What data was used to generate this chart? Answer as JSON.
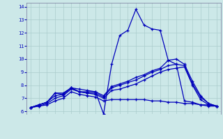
{
  "background_color": "#cce8e8",
  "grid_color": "#aacccc",
  "line_color": "#0000bb",
  "xmin": 0,
  "xmax": 23,
  "ymin": 6,
  "ymax": 14,
  "yticks": [
    6,
    7,
    8,
    9,
    10,
    11,
    12,
    13,
    14
  ],
  "xticks": [
    0,
    1,
    2,
    3,
    4,
    5,
    6,
    7,
    8,
    9,
    10,
    11,
    12,
    13,
    14,
    15,
    16,
    17,
    18,
    19,
    20,
    21,
    22,
    23
  ],
  "curves": [
    {
      "x": [
        0,
        1,
        2,
        3,
        4,
        5,
        6,
        7,
        8,
        9,
        10,
        11,
        12,
        13,
        14,
        15,
        16,
        17,
        18,
        19,
        20,
        21,
        22,
        23
      ],
      "y": [
        6.3,
        6.5,
        6.7,
        7.4,
        7.3,
        7.8,
        7.7,
        7.6,
        7.5,
        5.8,
        9.6,
        11.8,
        12.2,
        13.8,
        12.6,
        12.3,
        12.2,
        9.9,
        9.6,
        6.8,
        6.7,
        6.5,
        6.5,
        6.4
      ]
    },
    {
      "x": [
        0,
        1,
        2,
        3,
        4,
        5,
        6,
        7,
        8,
        9,
        10,
        11,
        12,
        13,
        14,
        15,
        16,
        17,
        18,
        19,
        20,
        21,
        22,
        23
      ],
      "y": [
        6.3,
        6.5,
        6.7,
        7.4,
        7.4,
        7.8,
        7.5,
        7.5,
        7.5,
        7.2,
        7.9,
        8.1,
        8.3,
        8.6,
        8.8,
        9.1,
        9.3,
        9.9,
        10.0,
        9.6,
        8.3,
        7.2,
        6.6,
        6.4
      ]
    },
    {
      "x": [
        0,
        1,
        2,
        3,
        4,
        5,
        6,
        7,
        8,
        9,
        10,
        11,
        12,
        13,
        14,
        15,
        16,
        17,
        18,
        19,
        20,
        21,
        22,
        23
      ],
      "y": [
        6.3,
        6.5,
        6.7,
        7.2,
        7.3,
        7.8,
        7.5,
        7.4,
        7.4,
        7.1,
        7.8,
        8.0,
        8.2,
        8.4,
        8.7,
        9.0,
        9.2,
        9.5,
        9.6,
        9.5,
        8.1,
        7.1,
        6.6,
        6.4
      ]
    },
    {
      "x": [
        0,
        1,
        2,
        3,
        4,
        5,
        6,
        7,
        8,
        9,
        10,
        11,
        12,
        13,
        14,
        15,
        16,
        17,
        18,
        19,
        20,
        21,
        22,
        23
      ],
      "y": [
        6.3,
        6.4,
        6.6,
        7.0,
        7.2,
        7.7,
        7.5,
        7.4,
        7.3,
        7.0,
        7.6,
        7.7,
        7.9,
        8.1,
        8.4,
        8.7,
        9.0,
        9.2,
        9.3,
        9.4,
        8.0,
        6.9,
        6.5,
        6.4
      ]
    },
    {
      "x": [
        0,
        1,
        2,
        3,
        4,
        5,
        6,
        7,
        8,
        9,
        10,
        11,
        12,
        13,
        14,
        15,
        16,
        17,
        18,
        19,
        20,
        21,
        22,
        23
      ],
      "y": [
        6.3,
        6.4,
        6.5,
        6.8,
        7.0,
        7.5,
        7.3,
        7.2,
        7.1,
        6.8,
        6.9,
        6.9,
        6.9,
        6.9,
        6.9,
        6.8,
        6.8,
        6.7,
        6.7,
        6.6,
        6.6,
        6.5,
        6.4,
        6.4
      ]
    }
  ]
}
